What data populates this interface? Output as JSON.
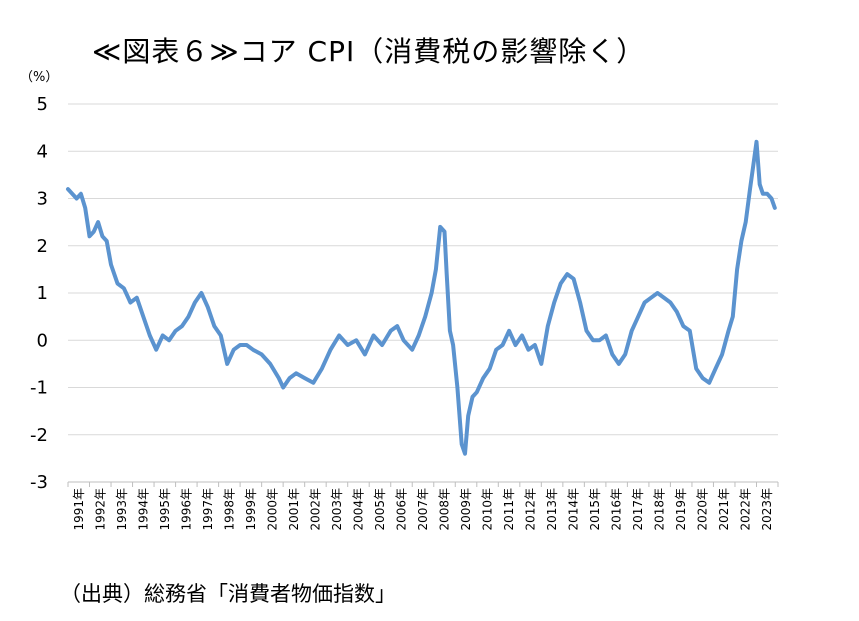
{
  "title": "≪図表６≫コア CPI（消費税の影響除く）",
  "source": "（出典）総務省「消費者物価指数」",
  "chart_data": {
    "type": "line",
    "ylabel": "（%）",
    "ylim": [
      -3,
      5
    ],
    "yticks": [
      5,
      4,
      3,
      2,
      1,
      0,
      -1,
      -2,
      -3
    ],
    "xlim": [
      1991,
      2024
    ],
    "xticks": [
      "1991年",
      "1992年",
      "1993年",
      "1994年",
      "1995年",
      "1996年",
      "1997年",
      "1998年",
      "1999年",
      "2000年",
      "2001年",
      "2002年",
      "2003年",
      "2004年",
      "2005年",
      "2006年",
      "2007年",
      "2008年",
      "2009年",
      "2010年",
      "2011年",
      "2012年",
      "2013年",
      "2014年",
      "2015年",
      "2016年",
      "2017年",
      "2018年",
      "2019年",
      "2020年",
      "2021年",
      "2022年",
      "2023年"
    ],
    "grid": true,
    "line_color": "#5b93cf",
    "series": [
      {
        "x": [
          1991.0,
          1991.2,
          1991.4,
          1991.6,
          1991.8,
          1992.0,
          1992.2,
          1992.4,
          1992.6,
          1992.8,
          1993.0,
          1993.3,
          1993.6,
          1993.9,
          1994.2,
          1994.5,
          1994.8,
          1995.1,
          1995.4,
          1995.7,
          1996.0,
          1996.3,
          1996.6,
          1996.9,
          1997.2,
          1997.5,
          1997.8,
          1998.1,
          1998.4,
          1998.7,
          1999.0,
          1999.3,
          1999.6,
          2000.0,
          2000.4,
          2000.8,
          2001.0,
          2001.3,
          2001.6,
          2002.0,
          2002.4,
          2002.8,
          2003.2,
          2003.6,
          2004.0,
          2004.4,
          2004.8,
          2005.2,
          2005.6,
          2006.0,
          2006.3,
          2006.6,
          2007.0,
          2007.3,
          2007.6,
          2007.9,
          2008.1,
          2008.3,
          2008.5,
          2008.6,
          2008.75,
          2008.9,
          2009.1,
          2009.3,
          2009.45,
          2009.6,
          2009.8,
          2010.0,
          2010.3,
          2010.6,
          2010.9,
          2011.2,
          2011.5,
          2011.8,
          2012.1,
          2012.4,
          2012.7,
          2013.0,
          2013.3,
          2013.6,
          2013.9,
          2014.2,
          2014.5,
          2014.8,
          2015.1,
          2015.4,
          2015.7,
          2016.0,
          2016.3,
          2016.6,
          2016.9,
          2017.2,
          2017.5,
          2017.8,
          2018.1,
          2018.4,
          2018.7,
          2019.0,
          2019.3,
          2019.6,
          2019.9,
          2020.2,
          2020.5,
          2020.8,
          2021.1,
          2021.4,
          2021.7,
          2021.9,
          2022.1,
          2022.3,
          2022.5,
          2022.7,
          2022.85,
          2023.0,
          2023.15,
          2023.3,
          2023.5,
          2023.7,
          2023.85
        ],
        "y": [
          3.2,
          3.1,
          3.0,
          3.1,
          2.8,
          2.2,
          2.3,
          2.5,
          2.2,
          2.1,
          1.6,
          1.2,
          1.1,
          0.8,
          0.9,
          0.5,
          0.1,
          -0.2,
          0.1,
          0.0,
          0.2,
          0.3,
          0.5,
          0.8,
          1.0,
          0.7,
          0.3,
          0.1,
          -0.5,
          -0.2,
          -0.1,
          -0.1,
          -0.2,
          -0.3,
          -0.5,
          -0.8,
          -1.0,
          -0.8,
          -0.7,
          -0.8,
          -0.9,
          -0.6,
          -0.2,
          0.1,
          -0.1,
          0.0,
          -0.3,
          0.1,
          -0.1,
          0.2,
          0.3,
          0.0,
          -0.2,
          0.1,
          0.5,
          1.0,
          1.5,
          2.4,
          2.3,
          1.4,
          0.2,
          -0.1,
          -1.0,
          -2.2,
          -2.4,
          -1.6,
          -1.2,
          -1.1,
          -0.8,
          -0.6,
          -0.2,
          -0.1,
          0.2,
          -0.1,
          0.1,
          -0.2,
          -0.1,
          -0.5,
          0.3,
          0.8,
          1.2,
          1.4,
          1.3,
          0.8,
          0.2,
          0.0,
          0.0,
          0.1,
          -0.3,
          -0.5,
          -0.3,
          0.2,
          0.5,
          0.8,
          0.9,
          1.0,
          0.9,
          0.8,
          0.6,
          0.3,
          0.2,
          -0.6,
          -0.8,
          -0.9,
          -0.6,
          -0.3,
          0.2,
          0.5,
          1.5,
          2.1,
          2.5,
          3.2,
          3.7,
          4.2,
          3.3,
          3.1,
          3.1,
          3.0,
          2.8
        ]
      }
    ]
  }
}
